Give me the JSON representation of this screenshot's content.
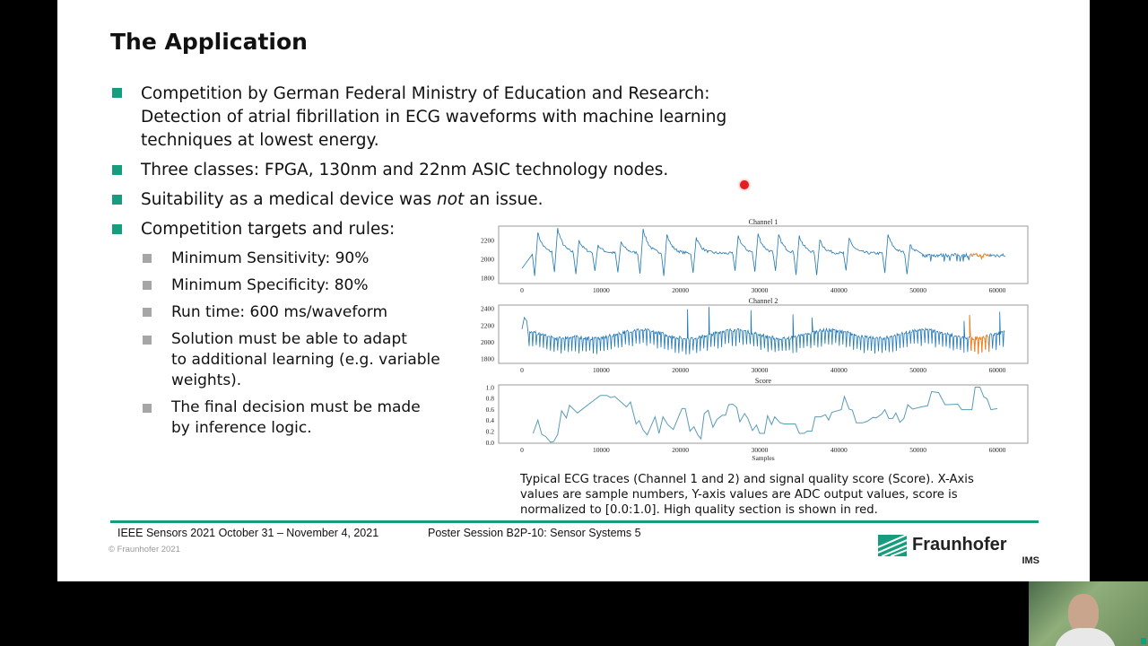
{
  "slide": {
    "title": "The Application",
    "bullets": [
      {
        "lines": [
          "Competition by German Federal Ministry of Education and Research:",
          "Detection of atrial fibrillation in ECG waveforms with machine learning",
          "techniques at lowest energy."
        ]
      },
      {
        "lines": [
          "Three classes: FPGA, 130nm and 22nm ASIC technology nodes."
        ]
      },
      {
        "pre": "Suitability as a medical device was ",
        "em": "not",
        "post": " an issue."
      },
      {
        "lines": [
          "Competition targets and rules:"
        ]
      }
    ],
    "sub_bullets": [
      {
        "lines": [
          "Minimum Sensitivity:   90%"
        ]
      },
      {
        "lines": [
          "Minimum Specificity:   80%"
        ]
      },
      {
        "lines": [
          "Run time:   600 ms/waveform"
        ]
      },
      {
        "lines": [
          "Solution must be able to adapt",
          "to additional learning (e.g. variable",
          "weights)."
        ]
      },
      {
        "lines": [
          "The final decision must be made",
          "by inference logic."
        ]
      }
    ],
    "caption": [
      "Typical ECG traces (Channel 1 and 2) and signal quality score (Score). X-Axis",
      "values are sample numbers, Y-axis values are ADC output values, score is",
      "normalized to [0.0:1.0]. High quality section is shown in red."
    ],
    "footer": {
      "conference": "IEEE Sensors 2021  October 31 – November 4, 2021",
      "session": "Poster Session B2P-10: Sensor Systems 5",
      "copyright": "© Fraunhofer 2021"
    },
    "logo": {
      "name": "Fraunhofer",
      "sub": "IMS"
    },
    "colors": {
      "accent": "#179c7d",
      "sub_bullet": "#a6a6a6",
      "trace": "#1f77b4",
      "highlight": "#ff7f0e",
      "pointer": "#e02020"
    }
  },
  "chart_data": [
    {
      "type": "line",
      "title": "Channel 1",
      "xlim": [
        0,
        61000
      ],
      "xticks": [
        0,
        10000,
        20000,
        30000,
        40000,
        50000,
        60000
      ],
      "yticks": [
        1800,
        2000,
        2200
      ],
      "ylim": [
        1740,
        2350
      ],
      "beats": [
        [
          2000,
          2280
        ],
        [
          4500,
          2330
        ],
        [
          7200,
          2200
        ],
        [
          9600,
          2150
        ],
        [
          12500,
          2180
        ],
        [
          15300,
          2320
        ],
        [
          18300,
          2260
        ],
        [
          22000,
          2230
        ],
        [
          27300,
          2250
        ],
        [
          29800,
          2270
        ],
        [
          32400,
          2260
        ],
        [
          35000,
          2250
        ],
        [
          37600,
          2200
        ],
        [
          41300,
          2220
        ],
        [
          46200,
          2260
        ],
        [
          49000,
          2150
        ]
      ],
      "flat_level": 2040,
      "flat_range": [
        50500,
        61000
      ],
      "highlight_range": [
        56500,
        59000
      ]
    },
    {
      "type": "line",
      "title": "Channel 2",
      "xlim": [
        0,
        61000
      ],
      "xticks": [
        0,
        10000,
        20000,
        30000,
        40000,
        50000,
        60000
      ],
      "yticks": [
        1800,
        2000,
        2200,
        2400
      ],
      "ylim": [
        1740,
        2440
      ],
      "baseline": 2090,
      "down_spike_level": 1920,
      "up_spikes": [
        [
          20900,
          2390
        ],
        [
          23600,
          2420
        ],
        [
          28900,
          2380
        ],
        [
          34200,
          2330
        ],
        [
          36600,
          2290
        ],
        [
          55800,
          2250
        ],
        [
          56500,
          2320
        ],
        [
          60300,
          2360
        ]
      ],
      "highlight_range": [
        56500,
        59000
      ]
    },
    {
      "type": "line",
      "title": "Score",
      "xlabel": "Samples",
      "xlim": [
        0,
        61000
      ],
      "xticks": [
        0,
        10000,
        20000,
        30000,
        40000,
        50000,
        60000
      ],
      "yticks": [
        0.0,
        0.2,
        0.4,
        0.6,
        0.8,
        1.0
      ],
      "ylim": [
        0,
        1.0
      ],
      "x": [
        1400,
        2000,
        2500,
        3000,
        3600,
        4000,
        4500,
        5000,
        5600,
        6000,
        7000,
        8800,
        9900,
        10700,
        11200,
        11700,
        13200,
        13700,
        14400,
        14800,
        15300,
        15800,
        16800,
        17300,
        17800,
        18400,
        19100,
        20200,
        20600,
        21200,
        21700,
        22200,
        22600,
        23000,
        23500,
        24100,
        24600,
        25300,
        25700,
        26100,
        26600,
        27100,
        27500,
        28100,
        28500,
        29100,
        29600,
        30000,
        30600,
        31000,
        31500,
        31900,
        32600,
        33100,
        34500,
        35000,
        35600,
        36000,
        36600,
        37000,
        37700,
        38300,
        38700,
        39100,
        39800,
        40300,
        40700,
        41300,
        41700,
        42200,
        43000,
        43600,
        44300,
        44700,
        45400,
        45800,
        46300,
        46800,
        47200,
        47700,
        48200,
        48700,
        49300,
        50400,
        51200,
        51700,
        52600,
        53400,
        55000,
        55500,
        56800,
        57200,
        57800,
        58300,
        58700,
        59200,
        60000
      ],
      "y": [
        0.16,
        0.4,
        0.14,
        0.1,
        0.0,
        0.01,
        0.14,
        0.57,
        0.44,
        0.67,
        0.53,
        0.73,
        0.85,
        0.85,
        0.81,
        0.83,
        0.64,
        0.73,
        0.33,
        0.39,
        0.22,
        0.13,
        0.46,
        0.16,
        0.46,
        0.32,
        0.23,
        0.61,
        0.61,
        0.2,
        0.28,
        0.13,
        0.06,
        0.52,
        0.58,
        0.27,
        0.41,
        0.49,
        0.49,
        0.68,
        0.69,
        0.63,
        0.37,
        0.52,
        0.43,
        0.21,
        0.31,
        0.16,
        0.16,
        0.48,
        0.32,
        0.46,
        0.35,
        0.33,
        0.33,
        0.16,
        0.16,
        0.2,
        0.2,
        0.46,
        0.46,
        0.5,
        0.4,
        0.54,
        0.57,
        0.59,
        0.83,
        0.6,
        0.58,
        0.35,
        0.35,
        0.38,
        0.45,
        0.44,
        0.51,
        0.59,
        0.43,
        0.43,
        0.53,
        0.36,
        0.43,
        0.68,
        0.6,
        0.64,
        0.66,
        0.92,
        0.9,
        0.68,
        0.69,
        0.59,
        0.59,
        1.0,
        1.0,
        0.82,
        0.79,
        0.59,
        0.61
      ]
    }
  ]
}
